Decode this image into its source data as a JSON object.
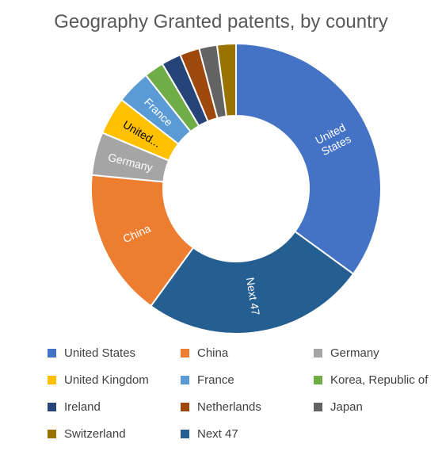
{
  "chart_data": {
    "type": "pie",
    "title": "Geography Granted patents, by country",
    "legend_position": "bottom",
    "slices": [
      {
        "label": "United States",
        "slice_label": "United States",
        "value": 35.0,
        "color": "#4472C4"
      },
      {
        "label": "Next 47",
        "slice_label": "Next 47",
        "value": 25.0,
        "color": "#255E91"
      },
      {
        "label": "China",
        "slice_label": "China",
        "value": 16.5,
        "color": "#ED7D31"
      },
      {
        "label": "Germany",
        "slice_label": "Germany",
        "value": 4.8,
        "color": "#A5A5A5"
      },
      {
        "label": "United Kingdom",
        "slice_label": "United...",
        "value": 4.2,
        "color": "#FFC000"
      },
      {
        "label": "France",
        "slice_label": "France",
        "value": 3.8,
        "color": "#5B9BD5"
      },
      {
        "label": "Korea, Republic of",
        "slice_label": "",
        "value": 2.2,
        "color": "#70AD47"
      },
      {
        "label": "Ireland",
        "slice_label": "",
        "value": 2.2,
        "color": "#264478"
      },
      {
        "label": "Netherlands",
        "slice_label": "",
        "value": 2.2,
        "color": "#9E480E"
      },
      {
        "label": "Japan",
        "slice_label": "",
        "value": 2.0,
        "color": "#636363"
      },
      {
        "label": "Switzerland",
        "slice_label": "",
        "value": 2.1,
        "color": "#997300"
      }
    ],
    "legend_order": [
      "United States",
      "China",
      "Germany",
      "United Kingdom",
      "France",
      "Korea, Republic of",
      "Ireland",
      "Netherlands",
      "Japan",
      "Switzerland",
      "Next 47"
    ]
  }
}
